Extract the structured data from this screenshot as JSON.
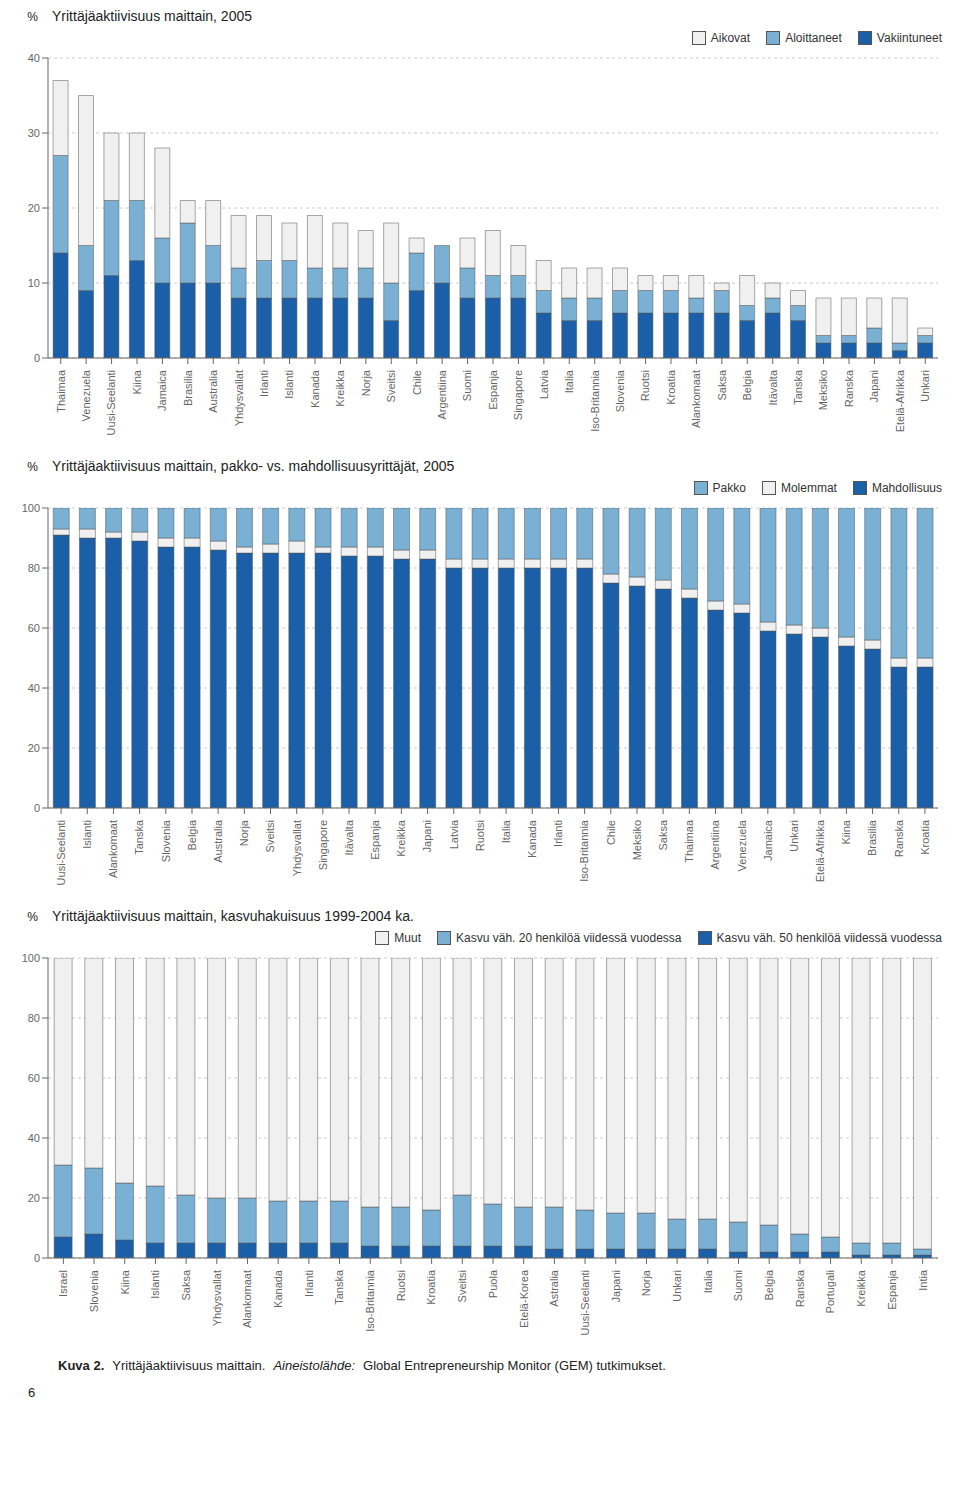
{
  "chart_data": [
    {
      "type": "bar",
      "stacked": true,
      "grid": true,
      "legend": "upper right",
      "title": "Yrittäjäaktiivisuus maittain, 2005",
      "y_label": "%",
      "ylim": [
        0,
        40
      ],
      "yticks": [
        0,
        10,
        20,
        30,
        40
      ],
      "categories": [
        "Thaimaa",
        "Venezuela",
        "Uusi-Seelanti",
        "Kiina",
        "Jamaica",
        "Brasilia",
        "Australia",
        "Yhdysvallat",
        "Irlanti",
        "Islanti",
        "Kanada",
        "Kreikka",
        "Norja",
        "Sveitsi",
        "Chile",
        "Argentiina",
        "Suomi",
        "Espanja",
        "Singapore",
        "Latvia",
        "Italia",
        "Iso-Britannia",
        "Slovenia",
        "Ruotsi",
        "Kroatia",
        "Alankomaat",
        "Saksa",
        "Belgia",
        "Itävalta",
        "Tanska",
        "Meksiko",
        "Ranska",
        "Japani",
        "Etelä-Afrikka",
        "Unkari"
      ],
      "series": [
        {
          "name": "Vakiintuneet",
          "color": "#1a5fa8",
          "values": [
            14,
            9,
            11,
            13,
            10,
            10,
            10,
            8,
            8,
            8,
            8,
            8,
            8,
            5,
            9,
            10,
            8,
            8,
            8,
            6,
            5,
            5,
            6,
            6,
            6,
            6,
            6,
            5,
            6,
            5,
            2,
            2,
            2,
            1,
            2
          ]
        },
        {
          "name": "Aloittaneet",
          "color": "#7ab0d4",
          "values": [
            13,
            6,
            10,
            8,
            6,
            8,
            5,
            4,
            5,
            5,
            4,
            4,
            4,
            5,
            5,
            5,
            4,
            3,
            3,
            3,
            3,
            3,
            3,
            3,
            3,
            2,
            3,
            2,
            2,
            2,
            1,
            1,
            2,
            1,
            1
          ]
        },
        {
          "name": "Aikovat",
          "color": "#f0f0f0",
          "values": [
            10,
            20,
            9,
            9,
            12,
            3,
            6,
            7,
            6,
            5,
            7,
            6,
            5,
            8,
            2,
            0,
            4,
            6,
            4,
            4,
            4,
            4,
            3,
            2,
            2,
            3,
            1,
            4,
            2,
            2,
            5,
            5,
            4,
            6,
            1
          ]
        }
      ]
    },
    {
      "type": "bar",
      "stacked": true,
      "grid": true,
      "legend": "upper right",
      "title": "Yrittäjäaktiivisuus maittain, pakko- vs. mahdollisuusyrittäjät, 2005",
      "y_label": "%",
      "ylim": [
        0,
        100
      ],
      "yticks": [
        0,
        20,
        40,
        60,
        80,
        100
      ],
      "categories": [
        "Uusi-Seelanti",
        "Islanti",
        "Alankomaat",
        "Tanska",
        "Slovenia",
        "Belgia",
        "Australia",
        "Norja",
        "Sveitsi",
        "Yhdysvallat",
        "Singapore",
        "Itävalta",
        "Espanja",
        "Kreikka",
        "Japani",
        "Latvia",
        "Ruotsi",
        "Italia",
        "Kanada",
        "Irlanti",
        "Iso-Britannia",
        "Chile",
        "Meksiko",
        "Saksa",
        "Thaimaa",
        "Argentiina",
        "Venezuela",
        "Jamaica",
        "Unkari",
        "Etelä-Afrikka",
        "Kiina",
        "Brasilia",
        "Ranska",
        "Kroatia"
      ],
      "series": [
        {
          "name": "Mahdollisuus",
          "color": "#1a5fa8",
          "values": [
            91,
            90,
            90,
            89,
            87,
            87,
            86,
            85,
            85,
            85,
            85,
            84,
            84,
            83,
            83,
            80,
            80,
            80,
            80,
            80,
            80,
            75,
            74,
            73,
            70,
            66,
            65,
            59,
            58,
            57,
            54,
            53,
            47,
            47
          ]
        },
        {
          "name": "Molemmat",
          "color": "#f0f0f0",
          "values": [
            2,
            3,
            2,
            3,
            3,
            3,
            3,
            2,
            3,
            4,
            2,
            3,
            3,
            3,
            3,
            3,
            3,
            3,
            3,
            3,
            3,
            3,
            3,
            3,
            3,
            3,
            3,
            3,
            3,
            3,
            3,
            3,
            3,
            3
          ]
        },
        {
          "name": "Pakko",
          "color": "#7ab0d4",
          "values": [
            7,
            7,
            8,
            8,
            10,
            10,
            11,
            13,
            12,
            11,
            13,
            13,
            13,
            14,
            14,
            17,
            17,
            17,
            17,
            17,
            17,
            22,
            23,
            24,
            27,
            31,
            32,
            38,
            39,
            40,
            43,
            44,
            50,
            50
          ]
        }
      ]
    },
    {
      "type": "bar",
      "stacked": true,
      "grid": true,
      "legend": "upper right",
      "title": "Yrittäjäaktiivisuus maittain, kasvuhakuisuus 1999-2004 ka.",
      "y_label": "%",
      "ylim": [
        0,
        100
      ],
      "yticks": [
        0,
        20,
        40,
        60,
        80,
        100
      ],
      "categories": [
        "Israel",
        "Slovenia",
        "Kiina",
        "Islanti",
        "Saksa",
        "Yhdysvallat",
        "Alankomaat",
        "Kanada",
        "Irlanti",
        "Tanska",
        "Iso-Britannia",
        "Ruotsi",
        "Kroatia",
        "Sveitsi",
        "Puola",
        "Etelä-Korea",
        "Astralia",
        "Uusi-Seelanti",
        "Japani",
        "Norja",
        "Unkari",
        "Italia",
        "Suomi",
        "Belgia",
        "Ranska",
        "Portugali",
        "Kreikka",
        "Espanja",
        "Intia"
      ],
      "series": [
        {
          "name": "Kasvu väh. 50 henkilöä viidessä vuodessa",
          "color": "#1a5fa8",
          "values": [
            7,
            8,
            6,
            5,
            5,
            5,
            5,
            5,
            5,
            5,
            4,
            4,
            4,
            4,
            4,
            4,
            3,
            3,
            3,
            3,
            3,
            3,
            2,
            2,
            2,
            2,
            1,
            1,
            1
          ]
        },
        {
          "name": "Kasvu väh. 20 henkilöä viidessä vuodessa",
          "color": "#7ab0d4",
          "values": [
            24,
            22,
            19,
            19,
            16,
            15,
            15,
            14,
            14,
            14,
            13,
            13,
            12,
            17,
            14,
            13,
            14,
            13,
            12,
            12,
            10,
            10,
            10,
            9,
            6,
            5,
            4,
            4,
            2
          ]
        },
        {
          "name": "Muut",
          "color": "#f0f0f0",
          "values": [
            69,
            70,
            75,
            76,
            79,
            80,
            80,
            81,
            81,
            81,
            83,
            83,
            84,
            79,
            82,
            83,
            83,
            84,
            85,
            85,
            87,
            87,
            88,
            89,
            92,
            93,
            95,
            95,
            97
          ]
        }
      ],
      "annotations": [
        "Kuva 2.",
        "Yrittäjäaktiivisuus maittain.",
        "Aineistolähde:",
        "Global Entrepreneurship Monitor (GEM) tutkimukset.",
        "6"
      ]
    }
  ]
}
